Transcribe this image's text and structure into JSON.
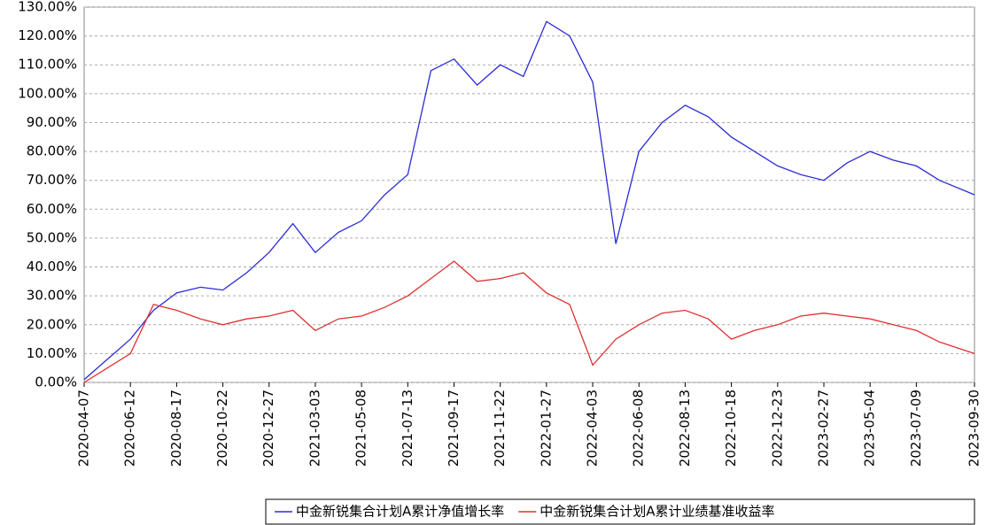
{
  "chart_data": {
    "type": "line",
    "x": [
      "2020-04-07",
      "2020-05-10",
      "2020-06-12",
      "2020-07-15",
      "2020-08-17",
      "2020-09-20",
      "2020-10-22",
      "2020-11-25",
      "2020-12-27",
      "2021-01-30",
      "2021-03-03",
      "2021-04-05",
      "2021-05-08",
      "2021-06-10",
      "2021-07-13",
      "2021-08-15",
      "2021-09-17",
      "2021-10-20",
      "2021-11-22",
      "2021-12-25",
      "2022-01-27",
      "2022-03-01",
      "2022-04-03",
      "2022-05-06",
      "2022-06-08",
      "2022-07-11",
      "2022-08-13",
      "2022-09-15",
      "2022-10-18",
      "2022-11-20",
      "2022-12-23",
      "2023-01-25",
      "2023-02-27",
      "2023-04-01",
      "2023-05-04",
      "2023-06-06",
      "2023-07-09",
      "2023-08-11",
      "2023-09-30"
    ],
    "series": [
      {
        "name": "中金新锐集合计划A累计净值增长率",
        "color": "#2b2bd6",
        "values": [
          1,
          8,
          15,
          25,
          31,
          33,
          32,
          38,
          45,
          55,
          45,
          52,
          56,
          65,
          72,
          108,
          112,
          103,
          110,
          106,
          125,
          120,
          104,
          48,
          80,
          90,
          96,
          92,
          85,
          80,
          75,
          72,
          70,
          76,
          80,
          77,
          75,
          70,
          65
        ]
      },
      {
        "name": "中金新锐集合计划A累计业绩基准收益率",
        "color": "#e03030",
        "values": [
          0,
          5,
          10,
          27,
          25,
          22,
          20,
          22,
          23,
          25,
          18,
          22,
          23,
          26,
          30,
          36,
          42,
          35,
          36,
          38,
          31,
          27,
          6,
          15,
          20,
          24,
          25,
          22,
          15,
          18,
          20,
          23,
          24,
          23,
          22,
          20,
          18,
          14,
          10
        ]
      }
    ],
    "ylim": [
      0,
      130
    ],
    "yticks": [
      {
        "value": 0,
        "label": "0.00%"
      },
      {
        "value": 10,
        "label": "10.00%"
      },
      {
        "value": 20,
        "label": "20.00%"
      },
      {
        "value": 30,
        "label": "30.00%"
      },
      {
        "value": 40,
        "label": "40.00%"
      },
      {
        "value": 50,
        "label": "50.00%"
      },
      {
        "value": 60,
        "label": "60.00%"
      },
      {
        "value": 70,
        "label": "70.00%"
      },
      {
        "value": 80,
        "label": "80.00%"
      },
      {
        "value": 90,
        "label": "90.00%"
      },
      {
        "value": 100,
        "label": "100.00%"
      },
      {
        "value": 110,
        "label": "110.00%"
      },
      {
        "value": 120,
        "label": "120.00%"
      },
      {
        "value": 130,
        "label": "130.00%"
      }
    ],
    "xticks": [
      "2020-04-07",
      "2020-06-12",
      "2020-08-17",
      "2020-10-22",
      "2020-12-27",
      "2021-03-03",
      "2021-05-08",
      "2021-07-13",
      "2021-09-17",
      "2021-11-22",
      "2022-01-27",
      "2022-04-03",
      "2022-06-08",
      "2022-08-13",
      "2022-10-18",
      "2022-12-23",
      "2023-02-27",
      "2023-05-04",
      "2023-07-09",
      "2023-09-30"
    ],
    "grid": true
  }
}
